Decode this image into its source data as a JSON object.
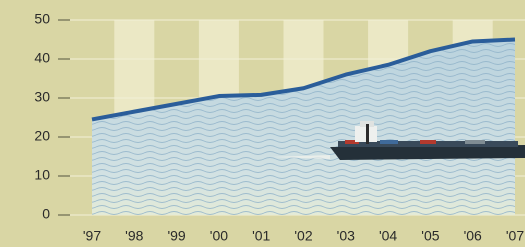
{
  "chart_data": {
    "type": "area",
    "categories": [
      "'97",
      "'98",
      "'99",
      "'00",
      "'01",
      "'02",
      "'03",
      "'04",
      "'05",
      "'06",
      "'07"
    ],
    "values": [
      24.5,
      26.5,
      28.5,
      30.5,
      30.8,
      32.5,
      36,
      38.5,
      42,
      44.5,
      45
    ],
    "color": "#2a5d9a",
    "ylim": [
      0,
      50
    ],
    "yticks": [
      0,
      10,
      20,
      30,
      40,
      50
    ],
    "grid": true
  }
}
